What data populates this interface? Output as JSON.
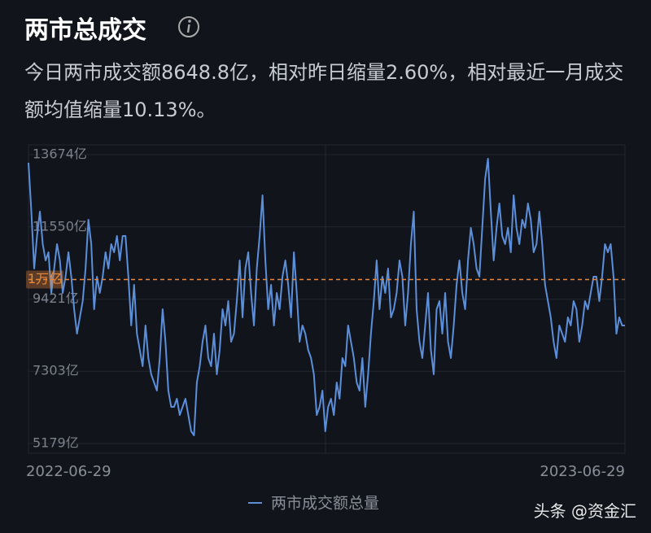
{
  "title": "两市总成交",
  "description": "今日两市成交额8648.8亿，相对昨日缩量2.60%，相对最近一月成交额均值缩量10.13%。",
  "watermark": "头条 @资金汇",
  "chart_data": {
    "type": "line",
    "categories": [
      "2022-06-29",
      null,
      null,
      null,
      null,
      null,
      null,
      null,
      null,
      null,
      null,
      null,
      null,
      null,
      null,
      null,
      null,
      null,
      null,
      null,
      null,
      null,
      null,
      null,
      null,
      null,
      null,
      null,
      null,
      null,
      null,
      null,
      null,
      null,
      null,
      null,
      null,
      null,
      null,
      null,
      null,
      null,
      null,
      null,
      null,
      null,
      null,
      null,
      null,
      null,
      null,
      null,
      null,
      null,
      null,
      null,
      null,
      null,
      null,
      null,
      null,
      null,
      null,
      null,
      null,
      null,
      null,
      null,
      null,
      null,
      null,
      null,
      null,
      null,
      null,
      null,
      null,
      null,
      null,
      null,
      null,
      null,
      null,
      null,
      null,
      null,
      null,
      null,
      null,
      null,
      null,
      null,
      null,
      null,
      null,
      null,
      null,
      null,
      null,
      null,
      null,
      null,
      null,
      null,
      null,
      null,
      null,
      null,
      null,
      null,
      null,
      null,
      null,
      null,
      null,
      null,
      null,
      null,
      null,
      null,
      null,
      null,
      null,
      null,
      null,
      null,
      null,
      null,
      null,
      null,
      null,
      null,
      null,
      null,
      null,
      null,
      null,
      null,
      null,
      null,
      null,
      null,
      null,
      null,
      null,
      null,
      null,
      null,
      null,
      null,
      null,
      null,
      null,
      null,
      null,
      null,
      null,
      null,
      null,
      null,
      null,
      null,
      null,
      null,
      null,
      null,
      null,
      null,
      null,
      null,
      null,
      null,
      null,
      null,
      null,
      null,
      null,
      null,
      null,
      null,
      null,
      null,
      null,
      null,
      null,
      null,
      null,
      null,
      null,
      null,
      null,
      null,
      null,
      null,
      null,
      null,
      null,
      null,
      null,
      null,
      null,
      null,
      null,
      null,
      null,
      null,
      null,
      null,
      null,
      "2023-06-29"
    ],
    "series": [
      {
        "name": "两市成交额总量",
        "color": "#5b8fd9",
        "values": [
          13435,
          11999,
          10324,
          11281,
          11999,
          11042,
          10563,
          10802,
          9606,
          10324,
          11042,
          10563,
          9606,
          10085,
          10802,
          10085,
          9127,
          8409,
          8888,
          9367,
          10324,
          11760,
          11042,
          9127,
          10085,
          9606,
          10085,
          10802,
          10324,
          11042,
          10802,
          11281,
          10563,
          11281,
          11281,
          10085,
          8649,
          9845,
          8409,
          7931,
          7452,
          8649,
          7692,
          7213,
          6974,
          6734,
          7692,
          9127,
          8170,
          6734,
          6256,
          6256,
          6495,
          6016,
          6256,
          6495,
          6016,
          5538,
          5418,
          6974,
          7452,
          8170,
          8649,
          7692,
          7452,
          8409,
          7213,
          7931,
          9127,
          8649,
          9367,
          8170,
          8409,
          9367,
          10563,
          8888,
          10324,
          10802,
          9606,
          8649,
          10324,
          11281,
          12477,
          10563,
          9127,
          9845,
          8649,
          9606,
          9127,
          10085,
          10563,
          9845,
          8888,
          10802,
          9606,
          8170,
          8649,
          8409,
          7931,
          7692,
          7213,
          6016,
          6256,
          6734,
          5538,
          6256,
          6495,
          6016,
          6974,
          6495,
          7692,
          7452,
          8649,
          8170,
          7692,
          6974,
          6734,
          7692,
          6256,
          7213,
          8409,
          9367,
          10563,
          9127,
          10085,
          9606,
          10324,
          8888,
          9127,
          9606,
          10563,
          10085,
          8649,
          9606,
          11042,
          11999,
          9127,
          8170,
          7692,
          8649,
          9606,
          7931,
          7213,
          9127,
          9367,
          8409,
          9606,
          8170,
          7692,
          8649,
          9845,
          10563,
          9606,
          9127,
          10563,
          11520,
          11042,
          10324,
          10085,
          11520,
          12956,
          13554,
          11999,
          10563,
          11520,
          12238,
          11281,
          11042,
          11520,
          10802,
          12477,
          11520,
          11042,
          11760,
          11520,
          12238,
          11760,
          10802,
          11042,
          11999,
          11042,
          9845,
          9367,
          8888,
          8170,
          7692,
          8649,
          8409,
          8170,
          8888,
          8649,
          9367,
          9127,
          8170,
          8649,
          9367,
          9127,
          9606,
          10085,
          10085,
          9367,
          10085,
          11042,
          10802,
          11042,
          10085,
          8409,
          8888,
          8649,
          8649
        ]
      }
    ],
    "ylim": [
      5179,
      13674
    ],
    "yticks": [
      {
        "value": 5179,
        "label": "5179亿"
      },
      {
        "value": 7303,
        "label": "7303亿"
      },
      {
        "value": 9421,
        "label": "9421亿"
      },
      {
        "value": 11550,
        "label": "11550亿"
      },
      {
        "value": 13674,
        "label": "13674亿"
      }
    ],
    "grid": true,
    "reference_line": {
      "value": 10000,
      "label": "1万亿",
      "color": "#e8883a"
    }
  }
}
